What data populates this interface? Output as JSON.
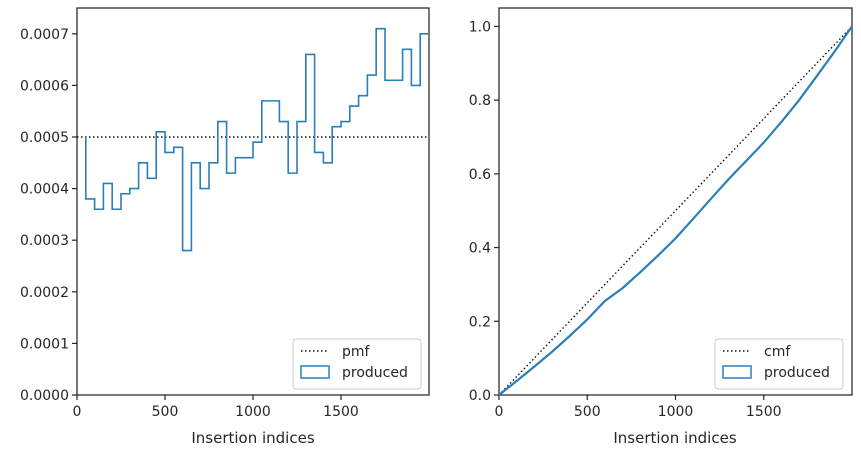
{
  "colors": {
    "produced": "#2a7fb8",
    "reference": "#111111",
    "axis": "#262626"
  },
  "chart_data": [
    {
      "type": "line",
      "chart": "pmf",
      "xlabel": "Insertion indices",
      "ylabel": "",
      "xlim": [
        0,
        2000
      ],
      "ylim": [
        0,
        0.00075
      ],
      "xticks": [
        0,
        500,
        1000,
        1500
      ],
      "xtick_labels": [
        "0",
        "500",
        "1000",
        "1500"
      ],
      "yticks": [
        0,
        0.0001,
        0.0002,
        0.0003,
        0.0004,
        0.0005,
        0.0006,
        0.0007
      ],
      "ytick_labels": [
        "0.0000",
        "0.0001",
        "0.0002",
        "0.0003",
        "0.0004",
        "0.0005",
        "0.0006",
        "0.0007"
      ],
      "grid": false,
      "legend": "lower-right",
      "legend_labels": [
        "pmf",
        "produced"
      ],
      "reference_line": {
        "name": "pmf",
        "style": "dotted",
        "y": 0.0005
      },
      "histogram": {
        "name": "produced",
        "start": 50,
        "bin_width": 50,
        "values": [
          0.00038,
          0.00036,
          0.00041,
          0.00036,
          0.00039,
          0.0004,
          0.00045,
          0.00042,
          0.00051,
          0.00047,
          0.00048,
          0.00028,
          0.00045,
          0.0004,
          0.00045,
          0.00053,
          0.00043,
          0.00046,
          0.00046,
          0.00049,
          0.00057,
          0.00057,
          0.00053,
          0.00043,
          0.00053,
          0.00066,
          0.00047,
          0.00045,
          0.00052,
          0.00053,
          0.00056,
          0.00058,
          0.00062,
          0.00071,
          0.00061,
          0.00061,
          0.00067,
          0.0006,
          0.0007
        ]
      }
    },
    {
      "type": "line",
      "chart": "cmf",
      "xlabel": "Insertion indices",
      "ylabel": "",
      "xlim": [
        0,
        2000
      ],
      "ylim": [
        0,
        1.05
      ],
      "xticks": [
        0,
        500,
        1000,
        1500
      ],
      "xtick_labels": [
        "0",
        "500",
        "1000",
        "1500"
      ],
      "yticks": [
        0,
        0.2,
        0.4,
        0.6,
        0.8,
        1.0
      ],
      "ytick_labels": [
        "0.0",
        "0.2",
        "0.4",
        "0.6",
        "0.8",
        "1.0"
      ],
      "grid": false,
      "legend": "lower-right",
      "legend_labels": [
        "cmf",
        "produced"
      ],
      "reference_line": {
        "name": "cmf",
        "style": "dotted",
        "x": [
          0,
          2000
        ],
        "y": [
          0,
          1.0
        ]
      },
      "series": [
        {
          "name": "produced",
          "x": [
            0,
            100,
            200,
            300,
            400,
            500,
            600,
            700,
            800,
            900,
            1000,
            1100,
            1200,
            1300,
            1400,
            1500,
            1600,
            1700,
            1800,
            1900,
            2000
          ],
          "y": [
            0,
            0.038,
            0.077,
            0.117,
            0.16,
            0.205,
            0.255,
            0.29,
            0.333,
            0.378,
            0.425,
            0.478,
            0.532,
            0.585,
            0.635,
            0.685,
            0.741,
            0.8,
            0.865,
            0.931,
            1.0
          ]
        }
      ]
    }
  ]
}
